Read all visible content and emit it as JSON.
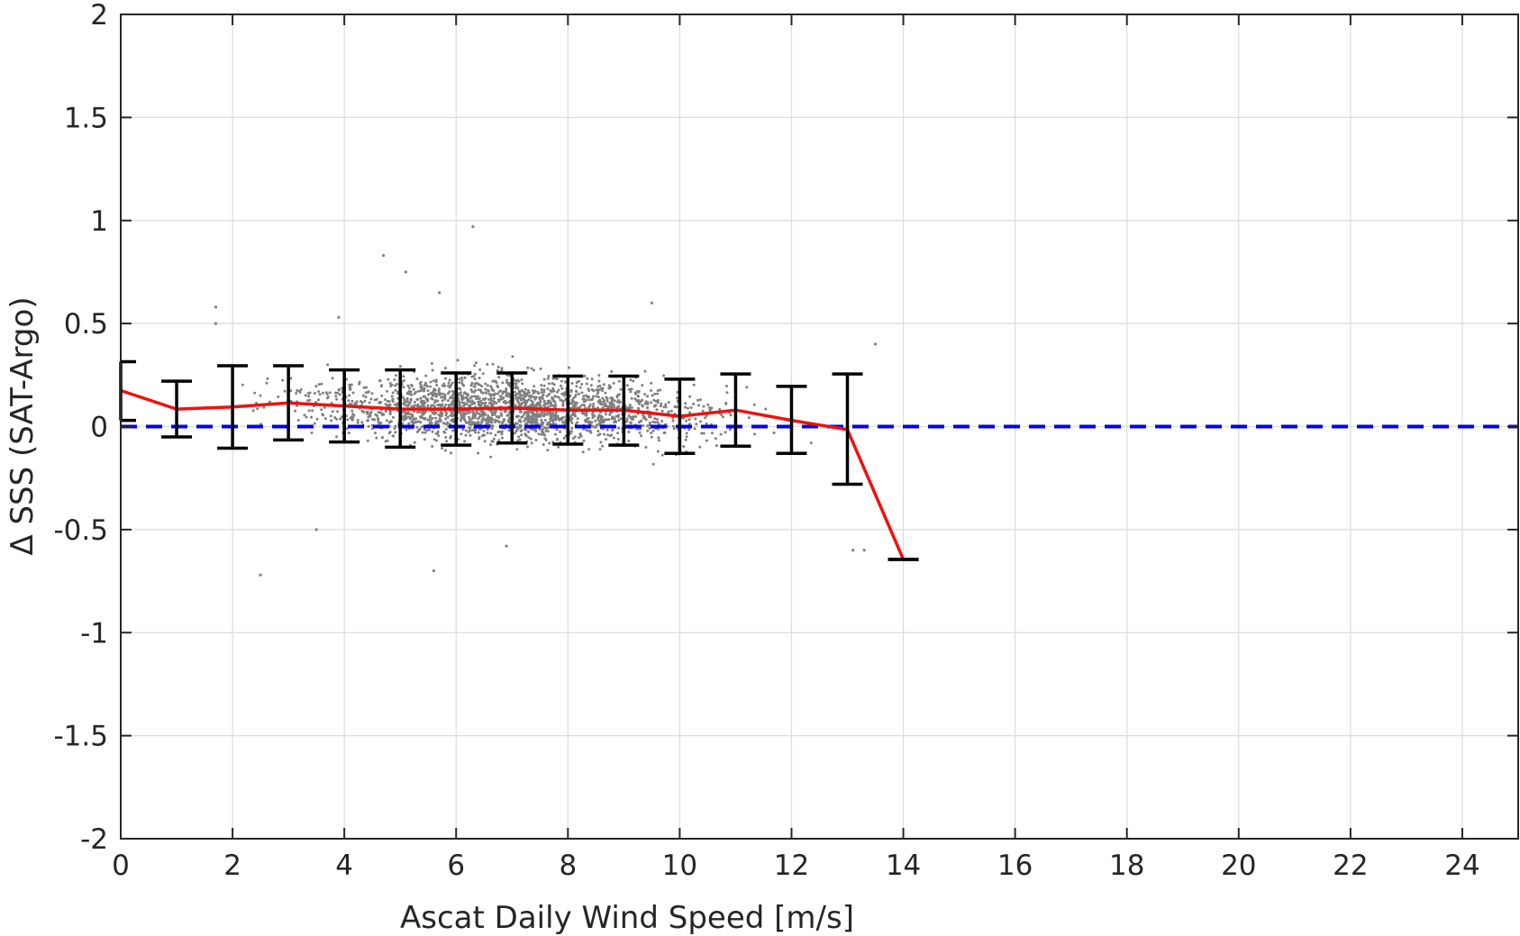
{
  "chart_data": {
    "type": "scatter",
    "title": "",
    "xlabel": "Ascat Daily Wind Speed [m/s]",
    "ylabel": "Δ SSS (SAT-Argo)",
    "xlim": [
      0,
      25
    ],
    "ylim": [
      -2,
      2
    ],
    "grid": true,
    "x_ticks": [
      0,
      2,
      4,
      6,
      8,
      10,
      12,
      14,
      16,
      18,
      20,
      22,
      24
    ],
    "y_ticks": [
      2,
      1.5,
      1,
      0.5,
      0,
      -0.5,
      -1,
      -1.5,
      -2
    ],
    "x_tick_labels": [
      "0",
      "2",
      "4",
      "6",
      "8",
      "10",
      "12",
      "14",
      "16",
      "18",
      "20",
      "22",
      "24"
    ],
    "y_tick_labels": [
      "2",
      "1.5",
      "1",
      "0.5",
      "0",
      "-0.5",
      "-1",
      "-1.5",
      "-2"
    ],
    "reference_line": {
      "y": 0,
      "color": "#0000ee",
      "style": "dashed"
    },
    "binned_mean": {
      "color": "#ee1111",
      "x": [
        0,
        1,
        2,
        3,
        4,
        5,
        6,
        7,
        8,
        9,
        10,
        11,
        12,
        13,
        14
      ],
      "y": [
        0.175,
        0.085,
        0.095,
        0.115,
        0.1,
        0.085,
        0.085,
        0.09,
        0.08,
        0.08,
        0.05,
        0.08,
        0.03,
        -0.015,
        -0.645
      ]
    },
    "error_bars": {
      "color": "#000000",
      "x": [
        0,
        1,
        2,
        3,
        4,
        5,
        6,
        7,
        8,
        9,
        10,
        11,
        12,
        13,
        14
      ],
      "lower": [
        0.03,
        -0.05,
        -0.105,
        -0.065,
        -0.075,
        -0.1,
        -0.09,
        -0.08,
        -0.085,
        -0.09,
        -0.13,
        -0.095,
        -0.13,
        -0.28,
        -0.645
      ],
      "upper": [
        0.315,
        0.22,
        0.295,
        0.295,
        0.275,
        0.275,
        0.26,
        0.26,
        0.245,
        0.245,
        0.23,
        0.255,
        0.195,
        0.255,
        -0.645
      ]
    },
    "scatter_points": {
      "color": "#808080",
      "count": 2200,
      "x_range": [
        0,
        13.5
      ],
      "outliers": [
        [
          4.7,
          0.83
        ],
        [
          6.3,
          0.97
        ],
        [
          5.7,
          0.65
        ],
        [
          5.1,
          0.75
        ],
        [
          1.7,
          0.58
        ],
        [
          2.5,
          -0.72
        ],
        [
          5.6,
          -0.7
        ],
        [
          3.5,
          -0.5
        ],
        [
          13.3,
          -0.6
        ],
        [
          6.9,
          -0.58
        ],
        [
          13.5,
          0.4
        ],
        [
          13.1,
          -0.6
        ],
        [
          1.7,
          0.5
        ],
        [
          9.5,
          0.6
        ],
        [
          3.9,
          0.53
        ]
      ]
    }
  }
}
